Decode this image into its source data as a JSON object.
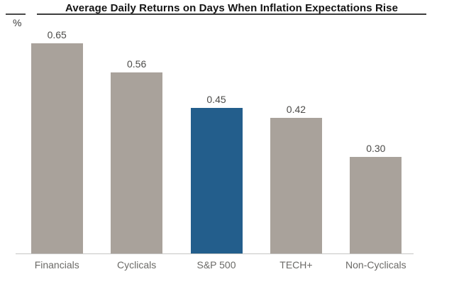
{
  "chart_data": {
    "type": "bar",
    "title": "Average Daily Returns on Days When Inflation Expectations Rise",
    "ylabel": "%",
    "xlabel": "",
    "categories": [
      "Financials",
      "Cyclicals",
      "S&P 500",
      "TECH+",
      "Non-Cyclicals"
    ],
    "values": [
      0.65,
      0.56,
      0.45,
      0.42,
      0.3
    ],
    "value_labels": [
      "0.65",
      "0.56",
      "0.45",
      "0.42",
      "0.30"
    ],
    "highlight_index": 2,
    "colors": {
      "bar": "#a9a29b",
      "highlight": "#235e8c",
      "value_label": "#4c4b49",
      "category_label": "#6b6a67",
      "title": "#141414",
      "axis_line": "#c6c6c4"
    },
    "ylim": [
      0,
      0.785
    ],
    "grid": false,
    "legend": false
  }
}
